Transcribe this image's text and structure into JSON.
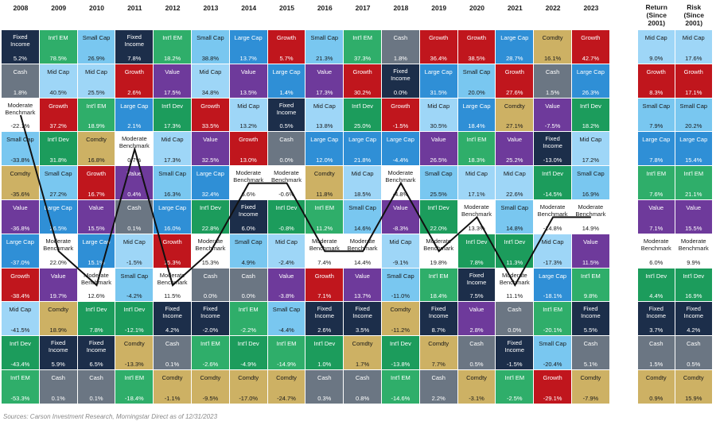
{
  "source": "Sources: Carson Investment Research, Morningstar Direct as of 12/31/2023",
  "colors": {
    "Fixed Income": "#1c2e4a",
    "Int'l EM": "#2fae6a",
    "Small Cap": "#79c7f0",
    "Cash": "#6b7683",
    "Mid Cap": "#9ed6f7",
    "Growth": "#c0161d",
    "Value": "#6e3a9b",
    "Large Cap": "#2f8fd6",
    "Int'l Dev": "#1c9c5c",
    "Comdty": "#cdb164",
    "Moderate Benchmark": "#ffffff"
  },
  "chart_data": {
    "type": "table",
    "years": [
      "2008",
      "2009",
      "2010",
      "2011",
      "2012",
      "2013",
      "2014",
      "2015",
      "2016",
      "2017",
      "2018",
      "2019",
      "2020",
      "2021",
      "2022",
      "2023"
    ],
    "summary_headers": [
      "Return (Since 2001)",
      "Risk (Since 2001)"
    ],
    "columns": [
      {
        "year": "2008",
        "cells": [
          [
            "Fixed Income",
            "5.2%"
          ],
          [
            "Cash",
            "1.8%"
          ],
          [
            "Moderate Benchmark",
            "-22.1%"
          ],
          [
            "Small Cap",
            "-33.8%"
          ],
          [
            "Comdty",
            "-35.6%"
          ],
          [
            "Value",
            "-36.8%"
          ],
          [
            "Large Cap",
            "-37.0%"
          ],
          [
            "Growth",
            "-38.4%"
          ],
          [
            "Mid Cap",
            "-41.5%"
          ],
          [
            "Int'l Dev",
            "-43.4%"
          ],
          [
            "Int'l EM",
            "-53.3%"
          ]
        ]
      },
      {
        "year": "2009",
        "cells": [
          [
            "Int'l EM",
            "78.5%"
          ],
          [
            "Mid Cap",
            "40.5%"
          ],
          [
            "Growth",
            "37.2%"
          ],
          [
            "Int'l Dev",
            "31.8%"
          ],
          [
            "Small Cap",
            "27.2%"
          ],
          [
            "Large Cap",
            "26.5%"
          ],
          [
            "Moderate Benchmark",
            "22.0%"
          ],
          [
            "Value",
            "19.7%"
          ],
          [
            "Comdty",
            "18.9%"
          ],
          [
            "Fixed Income",
            "5.9%"
          ],
          [
            "Cash",
            "0.1%"
          ]
        ]
      },
      {
        "year": "2010",
        "cells": [
          [
            "Small Cap",
            "26.9%"
          ],
          [
            "Mid Cap",
            "25.5%"
          ],
          [
            "Int'l EM",
            "18.9%"
          ],
          [
            "Comdty",
            "16.8%"
          ],
          [
            "Growth",
            "16.7%"
          ],
          [
            "Value",
            "15.5%"
          ],
          [
            "Large Cap",
            "15.1%"
          ],
          [
            "Moderate Benchmark",
            "12.6%"
          ],
          [
            "Int'l Dev",
            "7.8%"
          ],
          [
            "Fixed Income",
            "6.5%"
          ],
          [
            "Cash",
            "0.1%"
          ]
        ]
      },
      {
        "year": "2011",
        "cells": [
          [
            "Fixed Income",
            "7.8%"
          ],
          [
            "Growth",
            "2.6%"
          ],
          [
            "Large Cap",
            "2.1%"
          ],
          [
            "Moderate Benchmark",
            "0.7%"
          ],
          [
            "Value",
            "0.4%"
          ],
          [
            "Cash",
            "0.1%"
          ],
          [
            "Mid Cap",
            "-1.5%"
          ],
          [
            "Small Cap",
            "-4.2%"
          ],
          [
            "Int'l Dev",
            "-12.1%"
          ],
          [
            "Comdty",
            "-13.3%"
          ],
          [
            "Int'l EM",
            "-18.4%"
          ]
        ]
      },
      {
        "year": "2012",
        "cells": [
          [
            "Int'l EM",
            "18.2%"
          ],
          [
            "Value",
            "17.5%"
          ],
          [
            "Int'l Dev",
            "17.3%"
          ],
          [
            "Mid Cap",
            "17.3%"
          ],
          [
            "Small Cap",
            "16.3%"
          ],
          [
            "Large Cap",
            "16.0%"
          ],
          [
            "Growth",
            "15.3%"
          ],
          [
            "Moderate Benchmark",
            "11.5%"
          ],
          [
            "Fixed Income",
            "4.2%"
          ],
          [
            "Cash",
            "0.1%"
          ],
          [
            "Comdty",
            "-1.1%"
          ]
        ]
      },
      {
        "year": "2013",
        "cells": [
          [
            "Small Cap",
            "38.8%"
          ],
          [
            "Mid Cap",
            "34.8%"
          ],
          [
            "Growth",
            "33.5%"
          ],
          [
            "Value",
            "32.5%"
          ],
          [
            "Large Cap",
            "32.4%"
          ],
          [
            "Int'l Dev",
            "22.8%"
          ],
          [
            "Moderate Benchmark",
            "15.3%"
          ],
          [
            "Cash",
            "0.0%"
          ],
          [
            "Fixed Income",
            "-2.0%"
          ],
          [
            "Int'l EM",
            "-2.6%"
          ],
          [
            "Comdty",
            "-9.5%"
          ]
        ]
      },
      {
        "year": "2014",
        "cells": [
          [
            "Large Cap",
            "13.7%"
          ],
          [
            "Value",
            "13.5%"
          ],
          [
            "Mid Cap",
            "13.2%"
          ],
          [
            "Growth",
            "13.0%"
          ],
          [
            "Moderate Benchmark",
            "6.6%"
          ],
          [
            "Fixed Income",
            "6.0%"
          ],
          [
            "Small Cap",
            "4.9%"
          ],
          [
            "Cash",
            "0.0%"
          ],
          [
            "Int'l EM",
            "-2.2%"
          ],
          [
            "Int'l Dev",
            "-4.9%"
          ],
          [
            "Comdty",
            "-17.0%"
          ]
        ]
      },
      {
        "year": "2015",
        "cells": [
          [
            "Growth",
            "5.7%"
          ],
          [
            "Large Cap",
            "1.4%"
          ],
          [
            "Fixed Income",
            "0.5%"
          ],
          [
            "Cash",
            "0.0%"
          ],
          [
            "Moderate Benchmark",
            "-0.6%"
          ],
          [
            "Int'l Dev",
            "-0.8%"
          ],
          [
            "Mid Cap",
            "-2.4%"
          ],
          [
            "Value",
            "-3.8%"
          ],
          [
            "Small Cap",
            "-4.4%"
          ],
          [
            "Int'l EM",
            "-14.9%"
          ],
          [
            "Comdty",
            "-24.7%"
          ]
        ]
      },
      {
        "year": "2016",
        "cells": [
          [
            "Small Cap",
            "21.3%"
          ],
          [
            "Value",
            "17.3%"
          ],
          [
            "Mid Cap",
            "13.8%"
          ],
          [
            "Large Cap",
            "12.0%"
          ],
          [
            "Comdty",
            "11.8%"
          ],
          [
            "Int'l EM",
            "11.2%"
          ],
          [
            "Moderate Benchmark",
            "7.4%"
          ],
          [
            "Growth",
            "7.1%"
          ],
          [
            "Fixed Income",
            "2.6%"
          ],
          [
            "Int'l Dev",
            "1.0%"
          ],
          [
            "Cash",
            "0.3%"
          ]
        ]
      },
      {
        "year": "2017",
        "cells": [
          [
            "Int'l EM",
            "37.3%"
          ],
          [
            "Growth",
            "30.2%"
          ],
          [
            "Int'l Dev",
            "25.0%"
          ],
          [
            "Large Cap",
            "21.8%"
          ],
          [
            "Mid Cap",
            "18.5%"
          ],
          [
            "Small Cap",
            "14.6%"
          ],
          [
            "Moderate Benchmark",
            "14.4%"
          ],
          [
            "Value",
            "13.7%"
          ],
          [
            "Fixed Income",
            "3.5%"
          ],
          [
            "Comdty",
            "1.7%"
          ],
          [
            "Cash",
            "0.8%"
          ]
        ]
      },
      {
        "year": "2018",
        "cells": [
          [
            "Cash",
            "1.8%"
          ],
          [
            "Fixed Income",
            "0.0%"
          ],
          [
            "Growth",
            "-1.5%"
          ],
          [
            "Large Cap",
            "-4.4%"
          ],
          [
            "Moderate Benchmark",
            "-4.8%"
          ],
          [
            "Value",
            "-8.3%"
          ],
          [
            "Mid Cap",
            "-9.1%"
          ],
          [
            "Small Cap",
            "-11.0%"
          ],
          [
            "Comdty",
            "-11.2%"
          ],
          [
            "Int'l Dev",
            "-13.8%"
          ],
          [
            "Int'l EM",
            "-14.6%"
          ]
        ]
      },
      {
        "year": "2019",
        "cells": [
          [
            "Growth",
            "36.4%"
          ],
          [
            "Large Cap",
            "31.5%"
          ],
          [
            "Mid Cap",
            "30.5%"
          ],
          [
            "Value",
            "26.5%"
          ],
          [
            "Small Cap",
            "25.5%"
          ],
          [
            "Int'l Dev",
            "22.0%"
          ],
          [
            "Moderate Benchmark",
            "19.8%"
          ],
          [
            "Int'l EM",
            "18.4%"
          ],
          [
            "Fixed Income",
            "8.7%"
          ],
          [
            "Comdty",
            "7.7%"
          ],
          [
            "Cash",
            "2.2%"
          ]
        ]
      },
      {
        "year": "2020",
        "cells": [
          [
            "Growth",
            "38.5%"
          ],
          [
            "Small Cap",
            "20.0%"
          ],
          [
            "Large Cap",
            "18.4%"
          ],
          [
            "Int'l EM",
            "18.3%"
          ],
          [
            "Mid Cap",
            "17.1%"
          ],
          [
            "Moderate Benchmark",
            "13.3%"
          ],
          [
            "Int'l Dev",
            "7.8%"
          ],
          [
            "Fixed Income",
            "7.5%"
          ],
          [
            "Value",
            "2.8%"
          ],
          [
            "Cash",
            "0.5%"
          ],
          [
            "Comdty",
            "-3.1%"
          ]
        ]
      },
      {
        "year": "2021",
        "cells": [
          [
            "Large Cap",
            "28.7%"
          ],
          [
            "Growth",
            "27.6%"
          ],
          [
            "Comdty",
            "27.1%"
          ],
          [
            "Value",
            "25.2%"
          ],
          [
            "Mid Cap",
            "22.6%"
          ],
          [
            "Small Cap",
            "14.8%"
          ],
          [
            "Int'l Dev",
            "11.3%"
          ],
          [
            "Moderate Benchmark",
            "11.1%"
          ],
          [
            "Cash",
            "0.0%"
          ],
          [
            "Fixed Income",
            "-1.5%"
          ],
          [
            "Int'l EM",
            "-2.5%"
          ]
        ]
      },
      {
        "year": "2022",
        "cells": [
          [
            "Comdty",
            "16.1%"
          ],
          [
            "Cash",
            "1.5%"
          ],
          [
            "Value",
            "-7.5%"
          ],
          [
            "Fixed Income",
            "-13.0%"
          ],
          [
            "Int'l Dev",
            "-14.5%"
          ],
          [
            "Moderate Benchmark",
            "-14.8%"
          ],
          [
            "Mid Cap",
            "-17.3%"
          ],
          [
            "Large Cap",
            "-18.1%"
          ],
          [
            "Int'l EM",
            "-20.1%"
          ],
          [
            "Small Cap",
            "-20.4%"
          ],
          [
            "Growth",
            "-29.1%"
          ]
        ]
      },
      {
        "year": "2023",
        "cells": [
          [
            "Growth",
            "42.7%"
          ],
          [
            "Large Cap",
            "26.3%"
          ],
          [
            "Int'l Dev",
            "18.2%"
          ],
          [
            "Mid Cap",
            "17.2%"
          ],
          [
            "Small Cap",
            "16.9%"
          ],
          [
            "Moderate Benchmark",
            "14.9%"
          ],
          [
            "Value",
            "11.5%"
          ],
          [
            "Int'l EM",
            "9.8%"
          ],
          [
            "Fixed Income",
            "5.5%"
          ],
          [
            "Cash",
            "5.1%"
          ],
          [
            "Comdty",
            "-7.9%"
          ]
        ]
      }
    ],
    "summary": {
      "return": [
        [
          "Mid Cap",
          "9.0%"
        ],
        [
          "Growth",
          "8.3%"
        ],
        [
          "Small Cap",
          "7.9%"
        ],
        [
          "Large Cap",
          "7.8%"
        ],
        [
          "Int'l EM",
          "7.6%"
        ],
        [
          "Value",
          "7.1%"
        ],
        [
          "Moderate Benchmark",
          "6.0%"
        ],
        [
          "Int'l Dev",
          "4.4%"
        ],
        [
          "Fixed Income",
          "3.7%"
        ],
        [
          "Cash",
          "1.5%"
        ],
        [
          "Comdty",
          "0.9%"
        ]
      ],
      "risk": [
        [
          "Mid Cap",
          "17.6%"
        ],
        [
          "Growth",
          "17.1%"
        ],
        [
          "Small Cap",
          "20.2%"
        ],
        [
          "Large Cap",
          "15.4%"
        ],
        [
          "Int'l EM",
          "21.1%"
        ],
        [
          "Value",
          "15.5%"
        ],
        [
          "Moderate Benchmark",
          "9.9%"
        ],
        [
          "Int'l Dev",
          "16.9%"
        ],
        [
          "Fixed Income",
          "4.2%"
        ],
        [
          "Cash",
          "0.5%"
        ],
        [
          "Comdty",
          "15.9%"
        ]
      ]
    }
  }
}
